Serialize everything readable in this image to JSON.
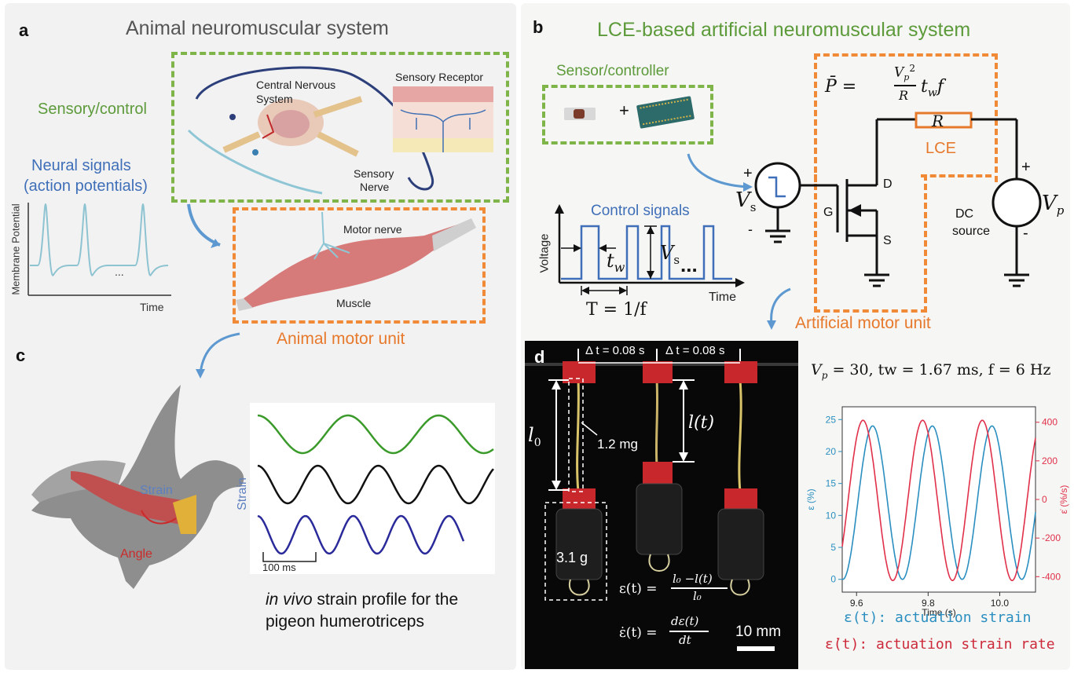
{
  "panel_a": {
    "letter": "a",
    "title": "Animal neuromuscular system",
    "sensory_control": "Sensory/control",
    "neural_signals_1": "Neural signals",
    "neural_signals_2": "(action potentials)",
    "cns_1": "Central Nervous",
    "cns_2": "System",
    "sensory_receptor": "Sensory Receptor",
    "sensory_nerve_1": "Sensory",
    "sensory_nerve_2": "Nerve",
    "motor_nerve": "Motor nerve",
    "muscle": "Muscle",
    "motor_unit": "Animal motor unit",
    "ylabel": "Membrane Potential",
    "xlabel": "Time",
    "ellipsis": "..."
  },
  "panel_b": {
    "letter": "b",
    "title": "LCE-based artificial neuromuscular system",
    "sensor_controller": "Sensor/controller",
    "plus": "+",
    "control_signals": "Control signals",
    "voltage": "Voltage",
    "time": "Time",
    "tw": "t",
    "tw_sub": "w",
    "vs": "V",
    "vs_sub": "s",
    "dots": "...",
    "period": "T = 1/f",
    "power_eq_lhs": "P̄ =",
    "power_num": "V",
    "power_num_sub": "p",
    "power_num_sup": "2",
    "power_den": "R",
    "power_rest": "t",
    "power_rest_sub": "w",
    "power_f": "f",
    "resistor": "R",
    "lce": "LCE",
    "gate": "G",
    "drain": "D",
    "source": "S",
    "dc_1": "DC",
    "dc_2": "source",
    "vp": "V",
    "vp_sub": "p",
    "plus_sign": "+",
    "minus_sign": "-",
    "artificial_motor_unit": "Artificial motor unit"
  },
  "panel_c": {
    "letter": "c",
    "strain_label": "Strain",
    "angle_label": "Angle",
    "strain_axis": "Strain",
    "scalebar": "100 ms",
    "caption_italic": "in vivo",
    "caption_rest": " strain profile for the",
    "caption_line2": "pigeon humerotriceps",
    "colors": {
      "wave1": "#3a9a2a",
      "wave2": "#111111",
      "wave3": "#2a2a9a"
    }
  },
  "panel_d": {
    "letter": "d",
    "dt1": "Δ t = 0.08 s",
    "dt2": "Δ t = 0.08 s",
    "l0": "l",
    "l0_sub": "0",
    "lt": "l(t)",
    "mass1": "1.2 mg",
    "mass2": "3.1 g",
    "eq1_lhs": "ε(t)  =",
    "eq1_num": "l₀ −l(t)",
    "eq1_den": "l₀",
    "eq2_lhs": "ε̇(t) =",
    "eq2_num": "dε(t)",
    "eq2_den": "dt",
    "scale": "10 mm",
    "params": "V",
    "params_sub": "p",
    "params_rest": " = 30, tw = 1.67 ms,  f = 6 Hz",
    "legend1": "ε(t): actuation strain",
    "legend2": "ε̇(t): actuation strain rate"
  },
  "chart_data": {
    "type": "line",
    "xlabel": "Time (s)",
    "ylabel_left": "ε (%)",
    "ylabel_right": "ε̇ (%/s)",
    "xlim": [
      9.56,
      10.1
    ],
    "ylim_left": [
      -2,
      27
    ],
    "ylim_right": [
      -480,
      480
    ],
    "x_ticks": [
      "9.6",
      "9.8",
      "10.0"
    ],
    "x_tick_values": [
      9.6,
      9.8,
      10.0
    ],
    "y_ticks_left": [
      "0",
      "5",
      "10",
      "15",
      "20",
      "25"
    ],
    "y_ticks_right": [
      "-400",
      "-200",
      "0",
      "200",
      "400"
    ],
    "series": [
      {
        "axis": "left",
        "color": "#2a8fc0",
        "frequency_hz": 6,
        "phase_peak_at": 9.645,
        "min": 0,
        "max": 24
      },
      {
        "axis": "right",
        "color": "#e0304a",
        "frequency_hz": 6,
        "phase_peak_at": 9.618,
        "min": -420,
        "max": 410
      }
    ]
  }
}
